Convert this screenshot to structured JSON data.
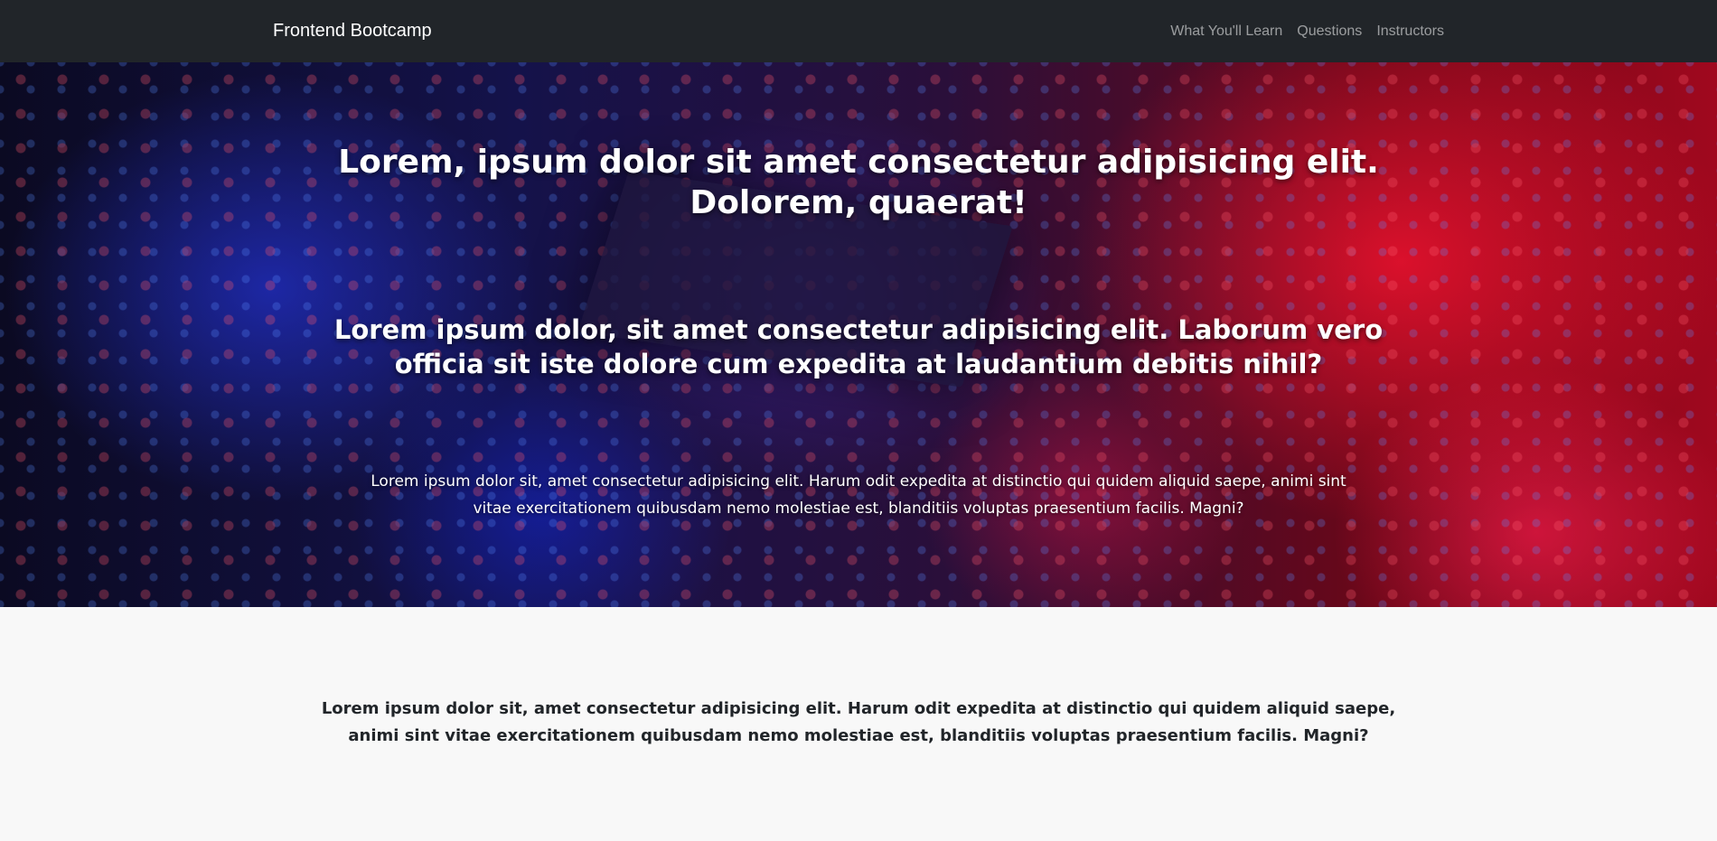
{
  "navbar": {
    "brand": "Frontend Bootcamp",
    "links": [
      {
        "label": "What You'll Learn"
      },
      {
        "label": "Questions"
      },
      {
        "label": "Instructors"
      }
    ],
    "background": "#212529"
  },
  "hero": {
    "title": "Lorem, ipsum dolor sit amet consectetur adipisicing elit. Dolorem, quaerat!",
    "subtitle": "Lorem ipsum dolor, sit amet consectetur adipisicing elit. Laborum vero officia sit iste dolore cum expedita at laudantium debitis nihil?",
    "text": "Lorem ipsum dolor sit, amet consectetur adipisicing elit. Harum odit expedita at distinctio qui quidem aliquid saepe, animi sint vitae exercitationem quibusdam nemo molestiae est, blanditiis voluptas praesentium facilis. Magni?"
  },
  "section": {
    "text": "Lorem ipsum dolor sit, amet consectetur adipisicing elit. Harum odit expedita at distinctio qui quidem aliquid saepe, animi sint vitae exercitationem quibusdam nemo molestiae est, blanditiis voluptas praesentium facilis. Magni?"
  }
}
